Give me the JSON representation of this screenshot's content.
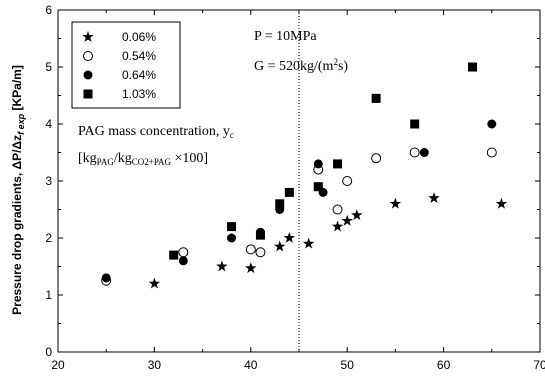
{
  "chart_data": {
    "type": "scatter",
    "ylabel_main": "Pressure drop gradients, ",
    "ylabel_sym": "ΔP/Δz",
    "ylabel_sub": "f exp",
    "ylabel_unit": " [KPa/m]",
    "xlim": [
      20,
      70
    ],
    "ylim": [
      0,
      6
    ],
    "xticks": [
      20,
      30,
      40,
      50,
      60,
      70
    ],
    "yticks": [
      0,
      1,
      2,
      3,
      4,
      5,
      6
    ],
    "reference_line_x": 45,
    "legend_position": "top-left",
    "annotations": {
      "pressure": "P = 10MPa",
      "mass_flux_prefix": "G = 520kg/(m",
      "mass_flux_sup": "2",
      "mass_flux_suffix": "s)",
      "conc_label_prefix": "PAG mass concentration, y",
      "conc_label_sub": "c",
      "conc_formula_open": "[kg",
      "conc_formula_sub1": "PAG",
      "conc_formula_slash": "/kg",
      "conc_formula_sub2": "CO2+PAG",
      "conc_formula_close": " ×100]"
    },
    "series": [
      {
        "name": "0.06%",
        "marker": "star",
        "points": [
          [
            30,
            1.2
          ],
          [
            37,
            1.5
          ],
          [
            40,
            1.47
          ],
          [
            43,
            1.85
          ],
          [
            44,
            2.0
          ],
          [
            46,
            1.9
          ],
          [
            49,
            2.2
          ],
          [
            50,
            2.3
          ],
          [
            51,
            2.4
          ],
          [
            55,
            2.6
          ],
          [
            59,
            2.7
          ],
          [
            66,
            2.6
          ]
        ]
      },
      {
        "name": "0.54%",
        "marker": "open-circle",
        "points": [
          [
            25,
            1.25
          ],
          [
            33,
            1.75
          ],
          [
            40,
            1.8
          ],
          [
            41,
            1.75
          ],
          [
            47,
            3.2
          ],
          [
            49,
            2.5
          ],
          [
            50,
            3.0
          ],
          [
            53,
            3.4
          ],
          [
            57,
            3.5
          ],
          [
            65,
            3.5
          ]
        ]
      },
      {
        "name": "0.64%",
        "marker": "filled-circle",
        "points": [
          [
            25,
            1.3
          ],
          [
            33,
            1.6
          ],
          [
            38,
            2.0
          ],
          [
            41,
            2.1
          ],
          [
            43,
            2.5
          ],
          [
            47,
            3.3
          ],
          [
            47.5,
            2.8
          ],
          [
            58,
            3.5
          ],
          [
            65,
            4.0
          ]
        ]
      },
      {
        "name": "1.03%",
        "marker": "filled-square",
        "points": [
          [
            32,
            1.7
          ],
          [
            38,
            2.2
          ],
          [
            41,
            2.05
          ],
          [
            43,
            2.6
          ],
          [
            44,
            2.8
          ],
          [
            47,
            2.9
          ],
          [
            49,
            3.3
          ],
          [
            53,
            4.45
          ],
          [
            57,
            4.0
          ],
          [
            63,
            5.0
          ]
        ]
      }
    ]
  }
}
